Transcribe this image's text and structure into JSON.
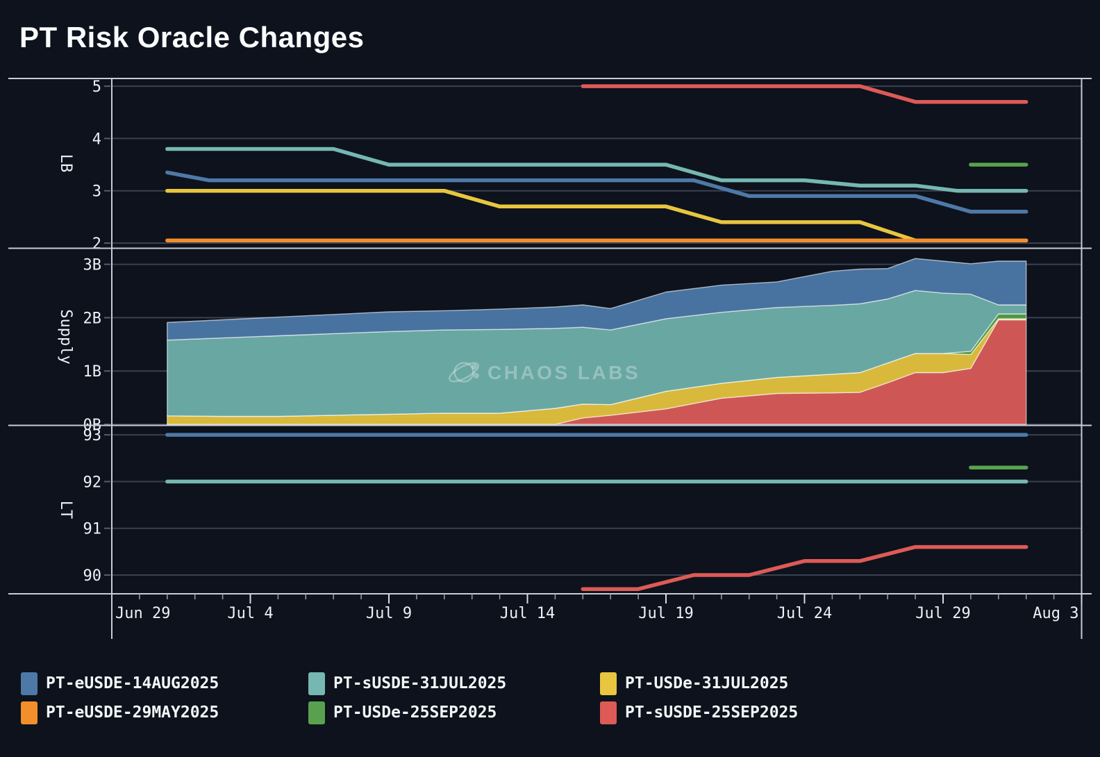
{
  "title": "PT Risk Oracle Changes",
  "watermark": "CHAOS LABS",
  "colors": {
    "background": "#0d121c",
    "frame": "#c7ccd6",
    "gridline": "#394050",
    "tick_dash": "#565d70",
    "tick_text": "#eef1f6",
    "minor_tick": "#9aa0ac",
    "major_tick": "#d6dae2",
    "blue": "#4E79A7",
    "teal": "#76B7B2",
    "yellow": "#E8C63F",
    "orange": "#F28E2B",
    "green": "#59A14F",
    "red": "#DD5A57",
    "area_red": "#CE5755",
    "area_yellow": "#D8B93C",
    "area_green": "#4D9845",
    "area_teal": "#69A7A2",
    "area_blue": "#4873A1",
    "area_edge": "rgba(255,255,255,0.6)"
  },
  "legend": {
    "items": [
      {
        "id": "PT-eUSDE-14AUG2025",
        "label": "PT-eUSDE-14AUG2025",
        "color": "#4E79A7"
      },
      {
        "id": "PT-sUSDE-31JUL2025",
        "label": "PT-sUSDE-31JUL2025",
        "color": "#76B7B2"
      },
      {
        "id": "PT-USDe-31JUL2025",
        "label": "PT-USDe-31JUL2025",
        "color": "#E8C63F"
      },
      {
        "id": "PT-eUSDE-29MAY2025",
        "label": "PT-eUSDE-29MAY2025",
        "color": "#F28E2B"
      },
      {
        "id": "PT-USDe-25SEP2025",
        "label": "PT-USDe-25SEP2025",
        "color": "#59A14F"
      },
      {
        "id": "PT-sUSDE-25SEP2025",
        "label": "PT-sUSDE-25SEP2025",
        "color": "#DD5A57"
      }
    ]
  },
  "chart_data": {
    "type": "multi-panel line + stacked area",
    "title": "PT Risk Oracle Changes",
    "x_axis": {
      "unit": "date (day index from Jun 29)",
      "days_total": 35,
      "ticks": [
        {
          "day": 0,
          "label": "Jun 29",
          "anchor": "start"
        },
        {
          "day": 5,
          "label": "Jul 4",
          "anchor": "middle"
        },
        {
          "day": 10,
          "label": "Jul 9",
          "anchor": "middle"
        },
        {
          "day": 15,
          "label": "Jul 14",
          "anchor": "middle"
        },
        {
          "day": 20,
          "label": "Jul 19",
          "anchor": "middle"
        },
        {
          "day": 25,
          "label": "Jul 24",
          "anchor": "middle"
        },
        {
          "day": 30,
          "label": "Jul 29",
          "anchor": "middle"
        },
        {
          "day": 35,
          "label": "Aug 3",
          "anchor": "end"
        }
      ]
    },
    "panels": [
      {
        "id": "lb",
        "axis_label": "LB",
        "type": "line",
        "ylim": [
          1.9,
          5.15
        ],
        "ticks": [
          {
            "value": 5,
            "label": "5"
          },
          {
            "value": 4,
            "label": "4"
          },
          {
            "value": 3,
            "label": "3"
          },
          {
            "value": 2,
            "label": "2"
          }
        ]
      },
      {
        "id": "supply",
        "axis_label": "Supply",
        "type": "stacked-area",
        "ylim": [
          0,
          3.3
        ],
        "unit": "billions",
        "ticks": [
          {
            "value": 3,
            "label": "3B"
          },
          {
            "value": 2,
            "label": "2B"
          },
          {
            "value": 1,
            "label": "1B"
          },
          {
            "value": 0,
            "label": "0B"
          }
        ]
      },
      {
        "id": "lt",
        "axis_label": "LT",
        "type": "line",
        "ylim": [
          89.6,
          93.2
        ],
        "ticks": [
          {
            "value": 93,
            "label": "93"
          },
          {
            "value": 92,
            "label": "92"
          },
          {
            "value": 91,
            "label": "91"
          },
          {
            "value": 90,
            "label": "90"
          }
        ]
      }
    ],
    "lb_series": [
      {
        "id": "PT-eUSDE-14AUG2025",
        "color": "#4E79A7",
        "points": [
          [
            2,
            3.35
          ],
          [
            3.5,
            3.2
          ],
          [
            21,
            3.2
          ],
          [
            23,
            2.9
          ],
          [
            29,
            2.9
          ],
          [
            31,
            2.6
          ],
          [
            33,
            2.6
          ]
        ]
      },
      {
        "id": "PT-sUSDE-31JUL2025",
        "color": "#76B7B2",
        "points": [
          [
            2,
            3.8
          ],
          [
            8,
            3.8
          ],
          [
            10,
            3.5
          ],
          [
            20,
            3.5
          ],
          [
            22,
            3.2
          ],
          [
            25,
            3.2
          ],
          [
            27,
            3.1
          ],
          [
            29,
            3.1
          ],
          [
            30.5,
            3.0
          ],
          [
            33,
            3.0
          ]
        ]
      },
      {
        "id": "PT-USDe-31JUL2025",
        "color": "#E8C63F",
        "points": [
          [
            2,
            3.0
          ],
          [
            12,
            3.0
          ],
          [
            14,
            2.7
          ],
          [
            20,
            2.7
          ],
          [
            22,
            2.4
          ],
          [
            27,
            2.4
          ],
          [
            29,
            2.05
          ],
          [
            33,
            2.05
          ]
        ]
      },
      {
        "id": "PT-eUSDE-29MAY2025",
        "color": "#F28E2B",
        "points": [
          [
            2,
            2.05
          ],
          [
            33,
            2.05
          ]
        ]
      },
      {
        "id": "PT-sUSDE-25SEP2025",
        "color": "#DD5A57",
        "points": [
          [
            17,
            5.0
          ],
          [
            27,
            5.0
          ],
          [
            29,
            4.7
          ],
          [
            33,
            4.7
          ]
        ]
      },
      {
        "id": "PT-USDe-25SEP2025",
        "color": "#59A14F",
        "points": [
          [
            31,
            3.5
          ],
          [
            33,
            3.5
          ]
        ]
      }
    ],
    "supply_stack": {
      "days": [
        2,
        4,
        6,
        8,
        10,
        12,
        14,
        16,
        17,
        18,
        20,
        22,
        24,
        26,
        27,
        28,
        29,
        30,
        31,
        32,
        33
      ],
      "bands": [
        {
          "id": "PT-sUSDE-25SEP2025",
          "color": "#CE5755",
          "values": [
            0,
            0,
            0,
            0,
            0,
            0,
            0,
            0,
            0.12,
            0.17,
            0.29,
            0.49,
            0.58,
            0.59,
            0.6,
            0.78,
            0.97,
            0.97,
            1.05,
            1.96,
            1.96
          ]
        },
        {
          "id": "PT-USDe-31JUL2025",
          "color": "#D8B93C",
          "values": [
            0.16,
            0.15,
            0.15,
            0.17,
            0.19,
            0.21,
            0.21,
            0.3,
            0.26,
            0.2,
            0.33,
            0.28,
            0.3,
            0.35,
            0.37,
            0.37,
            0.36,
            0.36,
            0.26,
            0.02,
            0.02
          ]
        },
        {
          "id": "PT-USDe-25SEP2025",
          "color": "#4D9845",
          "values": [
            0,
            0,
            0,
            0,
            0,
            0,
            0,
            0,
            0,
            0,
            0,
            0,
            0,
            0,
            0,
            0,
            0,
            0,
            0.06,
            0.09,
            0.09
          ]
        },
        {
          "id": "PT-sUSDE-31JUL2025",
          "color": "#69A7A2",
          "values": [
            1.42,
            1.47,
            1.51,
            1.53,
            1.55,
            1.56,
            1.57,
            1.5,
            1.44,
            1.4,
            1.36,
            1.33,
            1.31,
            1.29,
            1.29,
            1.2,
            1.18,
            1.13,
            1.07,
            0.17,
            0.17
          ]
        },
        {
          "id": "PT-eUSDE-14AUG2025",
          "color": "#4873A1",
          "values": [
            0.33,
            0.34,
            0.35,
            0.36,
            0.37,
            0.36,
            0.38,
            0.4,
            0.42,
            0.4,
            0.5,
            0.51,
            0.48,
            0.64,
            0.65,
            0.57,
            0.6,
            0.6,
            0.57,
            0.82,
            0.82
          ]
        }
      ]
    },
    "lt_series": [
      {
        "id": "PT-eUSDE-14AUG2025",
        "color": "#4E79A7",
        "points": [
          [
            2,
            93
          ],
          [
            33,
            93
          ]
        ]
      },
      {
        "id": "PT-sUSDE-31JUL2025",
        "color": "#76B7B2",
        "points": [
          [
            2,
            92
          ],
          [
            33,
            92
          ]
        ]
      },
      {
        "id": "PT-USDe-25SEP2025",
        "color": "#59A14F",
        "points": [
          [
            31,
            92.3
          ],
          [
            33,
            92.3
          ]
        ]
      },
      {
        "id": "PT-sUSDE-25SEP2025",
        "color": "#DD5A57",
        "points": [
          [
            17,
            89.7
          ],
          [
            19,
            89.7
          ],
          [
            21,
            90.0
          ],
          [
            23,
            90.0
          ],
          [
            25,
            90.3
          ],
          [
            27,
            90.3
          ],
          [
            29,
            90.6
          ],
          [
            33,
            90.6
          ]
        ]
      }
    ]
  }
}
